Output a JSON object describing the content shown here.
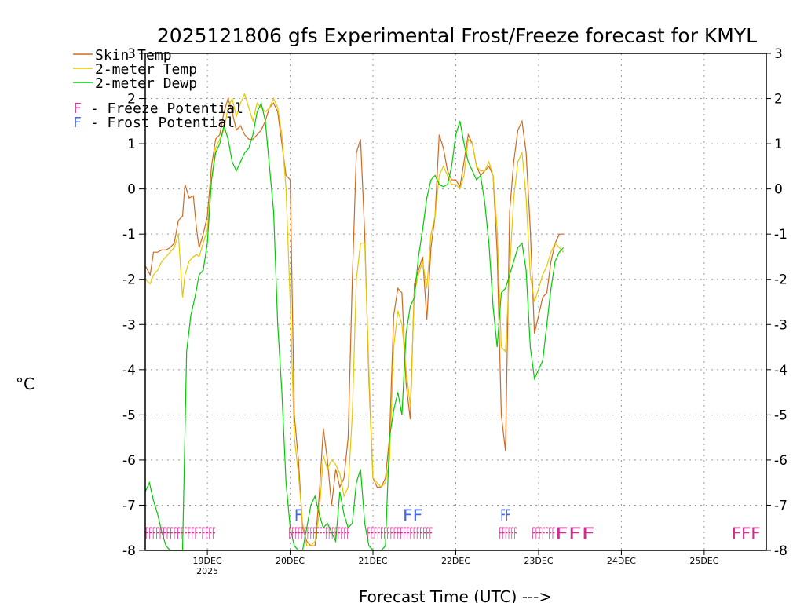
{
  "colors": {
    "skin": "#d2691e",
    "temp": "#e6c700",
    "dewp": "#00cc00",
    "freeze": "#cc2f8f",
    "frost": "#4169e1",
    "grid": "#999999",
    "axis": "#000000"
  },
  "chart_data": {
    "type": "line",
    "title": "2025121806 gfs Experimental Frost/Freeze forecast for KMYL",
    "ylabel": "°C",
    "xlabel": "Forecast Time (UTC) --->",
    "ylim": [
      -8,
      3
    ],
    "xlim": [
      18.25,
      25.75
    ],
    "yticks": [
      3,
      2,
      1,
      0,
      -1,
      -2,
      -3,
      -4,
      -5,
      -6,
      -7,
      -8
    ],
    "yticks_right": [
      3,
      2,
      1,
      0,
      -1,
      -2,
      -3,
      -4,
      -5,
      -6,
      -7,
      -8
    ],
    "xticks": [
      {
        "x": 19,
        "label": "19DEC",
        "sub": "2025"
      },
      {
        "x": 20,
        "label": "20DEC",
        "sub": ""
      },
      {
        "x": 21,
        "label": "21DEC",
        "sub": ""
      },
      {
        "x": 22,
        "label": "22DEC",
        "sub": ""
      },
      {
        "x": 23,
        "label": "23DEC",
        "sub": ""
      },
      {
        "x": 24,
        "label": "24DEC",
        "sub": ""
      },
      {
        "x": 25,
        "label": "25DEC",
        "sub": ""
      }
    ],
    "legend": {
      "position": "top-left",
      "entries": [
        {
          "label": "Skin Temp",
          "color_key": "skin"
        },
        {
          "label": "2-meter Temp",
          "color_key": "temp"
        },
        {
          "label": "2-meter Dewp",
          "color_key": "dewp"
        }
      ],
      "markers": [
        {
          "symbol": "F",
          "text": " - Freeze Potential",
          "color_key": "freeze"
        },
        {
          "symbol": "F",
          "text": " - Frost Potential",
          "color_key": "frost"
        }
      ]
    },
    "series": [
      {
        "name": "Skin Temp",
        "color_key": "skin",
        "x": [
          18.25,
          18.31,
          18.35,
          18.4,
          18.45,
          18.5,
          18.55,
          18.6,
          18.65,
          18.7,
          18.73,
          18.78,
          18.83,
          18.87,
          18.9,
          18.95,
          19.0,
          19.05,
          19.1,
          19.15,
          19.2,
          19.25,
          19.3,
          19.35,
          19.4,
          19.45,
          19.5,
          19.55,
          19.6,
          19.65,
          19.7,
          19.75,
          19.8,
          19.85,
          19.9,
          19.95,
          20.0,
          20.05,
          20.1,
          20.15,
          20.2,
          20.25,
          20.3,
          20.35,
          20.4,
          20.45,
          20.5,
          20.55,
          20.6,
          20.65,
          20.7,
          20.75,
          20.8,
          20.85,
          20.9,
          20.95,
          21.0,
          21.05,
          21.1,
          21.15,
          21.2,
          21.25,
          21.3,
          21.35,
          21.4,
          21.45,
          21.5,
          21.55,
          21.6,
          21.65,
          21.7,
          21.75,
          21.8,
          21.85,
          21.9,
          21.95,
          22.0,
          22.05,
          22.1,
          22.15,
          22.2,
          22.25,
          22.3,
          22.35,
          22.4,
          22.45,
          22.5,
          22.55,
          22.6,
          22.65,
          22.7,
          22.75,
          22.8,
          22.85,
          22.9,
          22.95,
          23.0,
          23.05,
          23.1,
          23.15,
          23.2,
          23.25,
          23.3
        ],
        "y": [
          -1.7,
          -1.9,
          -1.4,
          -1.4,
          -1.35,
          -1.35,
          -1.3,
          -1.2,
          -0.7,
          -0.6,
          0.1,
          -0.2,
          -0.15,
          -0.9,
          -1.3,
          -1.0,
          -0.6,
          0.5,
          1.1,
          1.2,
          1.7,
          2.0,
          1.7,
          1.3,
          1.4,
          1.2,
          1.1,
          1.1,
          1.2,
          1.3,
          1.5,
          1.8,
          1.9,
          1.7,
          1.0,
          0.3,
          0.2,
          -5.0,
          -6.0,
          -7.5,
          -7.8,
          -7.9,
          -7.9,
          -6.8,
          -5.3,
          -6.0,
          -7.0,
          -6.2,
          -6.6,
          -6.4,
          -5.5,
          -2.0,
          0.8,
          1.1,
          -1.0,
          -4.2,
          -6.4,
          -6.6,
          -6.6,
          -6.4,
          -5.5,
          -2.8,
          -2.2,
          -2.3,
          -4.3,
          -5.1,
          -2.1,
          -1.8,
          -1.5,
          -2.9,
          -1.3,
          -0.6,
          1.2,
          0.9,
          0.4,
          0.2,
          0.2,
          0.05,
          0.6,
          1.2,
          1.0,
          0.5,
          0.3,
          0.4,
          0.5,
          0.3,
          -1.4,
          -5.0,
          -5.8,
          -0.5,
          0.6,
          1.3,
          1.5,
          0.8,
          -0.9,
          -3.2,
          -2.8,
          -2.4,
          -2.3,
          -1.6,
          -1.2,
          -1.0,
          -1.0
        ]
      },
      {
        "name": "2-meter Temp",
        "color_key": "temp",
        "x": [
          18.25,
          18.31,
          18.35,
          18.4,
          18.45,
          18.5,
          18.55,
          18.6,
          18.65,
          18.7,
          18.73,
          18.78,
          18.83,
          18.87,
          18.9,
          18.95,
          19.0,
          19.05,
          19.1,
          19.15,
          19.2,
          19.25,
          19.3,
          19.35,
          19.4,
          19.45,
          19.5,
          19.55,
          19.6,
          19.65,
          19.7,
          19.75,
          19.8,
          19.85,
          19.9,
          19.95,
          20.0,
          20.05,
          20.1,
          20.15,
          20.2,
          20.25,
          20.3,
          20.35,
          20.4,
          20.45,
          20.5,
          20.55,
          20.6,
          20.65,
          20.7,
          20.75,
          20.8,
          20.85,
          20.9,
          20.95,
          21.0,
          21.05,
          21.1,
          21.15,
          21.2,
          21.25,
          21.3,
          21.35,
          21.4,
          21.45,
          21.5,
          21.55,
          21.6,
          21.65,
          21.7,
          21.75,
          21.8,
          21.85,
          21.9,
          21.95,
          22.0,
          22.05,
          22.1,
          22.15,
          22.2,
          22.25,
          22.3,
          22.35,
          22.4,
          22.45,
          22.5,
          22.55,
          22.6,
          22.65,
          22.7,
          22.75,
          22.8,
          22.85,
          22.9,
          22.95,
          23.0,
          23.05,
          23.1,
          23.15,
          23.2,
          23.25,
          23.3
        ],
        "y": [
          -2.0,
          -2.1,
          -1.9,
          -1.8,
          -1.6,
          -1.5,
          -1.4,
          -1.3,
          -1.0,
          -2.4,
          -1.9,
          -1.6,
          -1.5,
          -1.45,
          -1.5,
          -1.2,
          -0.9,
          0.2,
          0.9,
          1.1,
          1.3,
          1.8,
          2.0,
          1.6,
          1.9,
          2.1,
          1.8,
          1.5,
          1.9,
          1.8,
          1.7,
          1.8,
          2.0,
          1.8,
          1.2,
          0.0,
          -2.5,
          -5.5,
          -6.3,
          -7.4,
          -7.9,
          -7.9,
          -7.8,
          -7.2,
          -5.9,
          -6.2,
          -6.0,
          -6.1,
          -6.3,
          -6.8,
          -6.6,
          -5.0,
          -2.0,
          -1.2,
          -1.2,
          -4.0,
          -6.4,
          -6.5,
          -6.6,
          -6.5,
          -6.0,
          -3.5,
          -2.7,
          -3.0,
          -4.0,
          -4.8,
          -2.3,
          -1.9,
          -1.6,
          -2.2,
          -1.0,
          -0.6,
          0.3,
          0.5,
          0.3,
          0.1,
          0.1,
          0.0,
          0.3,
          1.1,
          1.0,
          0.5,
          0.4,
          0.4,
          0.6,
          0.3,
          -0.9,
          -3.5,
          -3.6,
          -1.8,
          -0.2,
          0.6,
          0.8,
          -0.2,
          -1.9,
          -2.5,
          -2.2,
          -1.9,
          -1.7,
          -1.4,
          -1.2,
          -1.3,
          -1.4
        ]
      },
      {
        "name": "2-meter Dewp",
        "color_key": "dewp",
        "x": [
          18.25,
          18.3,
          18.35,
          18.4,
          18.45,
          18.5,
          18.55,
          18.6,
          18.65,
          18.7,
          18.75,
          18.8,
          18.85,
          18.9,
          18.95,
          19.0,
          19.05,
          19.1,
          19.15,
          19.2,
          19.25,
          19.3,
          19.35,
          19.4,
          19.45,
          19.5,
          19.55,
          19.6,
          19.65,
          19.7,
          19.75,
          19.8,
          19.85,
          19.9,
          19.95,
          20.0,
          20.05,
          20.1,
          20.15,
          20.2,
          20.25,
          20.3,
          20.35,
          20.4,
          20.45,
          20.5,
          20.55,
          20.6,
          20.65,
          20.7,
          20.75,
          20.8,
          20.85,
          20.9,
          20.95,
          21.0,
          21.05,
          21.1,
          21.15,
          21.2,
          21.25,
          21.3,
          21.35,
          21.4,
          21.45,
          21.5,
          21.55,
          21.6,
          21.65,
          21.7,
          21.75,
          21.8,
          21.85,
          21.9,
          21.95,
          22.0,
          22.05,
          22.1,
          22.15,
          22.2,
          22.25,
          22.3,
          22.35,
          22.4,
          22.45,
          22.5,
          22.55,
          22.6,
          22.65,
          22.7,
          22.75,
          22.8,
          22.85,
          22.9,
          22.95,
          23.0,
          23.05,
          23.1,
          23.15,
          23.2,
          23.25,
          23.3
        ],
        "y": [
          -6.7,
          -6.5,
          -6.9,
          -7.2,
          -7.6,
          -7.9,
          -8.0,
          -8.0,
          -8.0,
          -8.0,
          -3.6,
          -2.8,
          -2.4,
          -1.9,
          -1.8,
          -1.2,
          0.2,
          0.8,
          1.0,
          1.4,
          1.1,
          0.6,
          0.4,
          0.6,
          0.8,
          0.9,
          1.2,
          1.7,
          1.9,
          1.5,
          0.5,
          -0.5,
          -3.0,
          -4.5,
          -6.5,
          -7.5,
          -7.9,
          -8.0,
          -8.0,
          -7.5,
          -7.0,
          -6.8,
          -7.2,
          -7.5,
          -7.4,
          -7.6,
          -7.8,
          -6.7,
          -7.2,
          -7.5,
          -7.4,
          -6.5,
          -6.2,
          -7.4,
          -7.9,
          -8.0,
          -8.0,
          -8.0,
          -7.9,
          -5.5,
          -4.9,
          -4.5,
          -5.0,
          -3.2,
          -2.6,
          -2.4,
          -1.5,
          -0.9,
          -0.2,
          0.2,
          0.3,
          0.1,
          0.05,
          0.1,
          0.5,
          1.2,
          1.5,
          1.0,
          0.6,
          0.4,
          0.2,
          0.3,
          -0.3,
          -1.2,
          -2.6,
          -3.5,
          -2.3,
          -2.2,
          -1.9,
          -1.6,
          -1.3,
          -1.2,
          -1.8,
          -3.5,
          -4.2,
          -4.0,
          -3.8,
          -3.0,
          -2.2,
          -1.6,
          -1.4,
          -1.3
        ]
      }
    ],
    "freeze_flags": {
      "color_key": "freeze",
      "segments": [
        {
          "x1": 18.25,
          "x2": 19.1,
          "text": "FFFFFFFFFFFFFFFFFFFF"
        },
        {
          "x1": 19.98,
          "x2": 20.72,
          "text": "FFFFFFFFFFFFFFFFFFFF"
        },
        {
          "x1": 20.93,
          "x2": 21.72,
          "text": "FFFFFFFFFFFFFFFFFFFF"
        },
        {
          "x1": 22.52,
          "x2": 22.74,
          "text": "FFFFFF"
        },
        {
          "x1": 22.92,
          "x2": 23.2,
          "text": "FFFFFFF"
        },
        {
          "x1": 23.2,
          "x2": 23.68,
          "text": "FFF"
        },
        {
          "x1": 25.33,
          "x2": 25.68,
          "text": "FFF"
        }
      ]
    },
    "frost_flags": {
      "color_key": "frost",
      "segments": [
        {
          "x1": 20.05,
          "x2": 20.15,
          "text": "F"
        },
        {
          "x1": 21.36,
          "x2": 21.6,
          "text": "FF"
        },
        {
          "x1": 22.54,
          "x2": 22.66,
          "text": "FF"
        }
      ]
    }
  }
}
